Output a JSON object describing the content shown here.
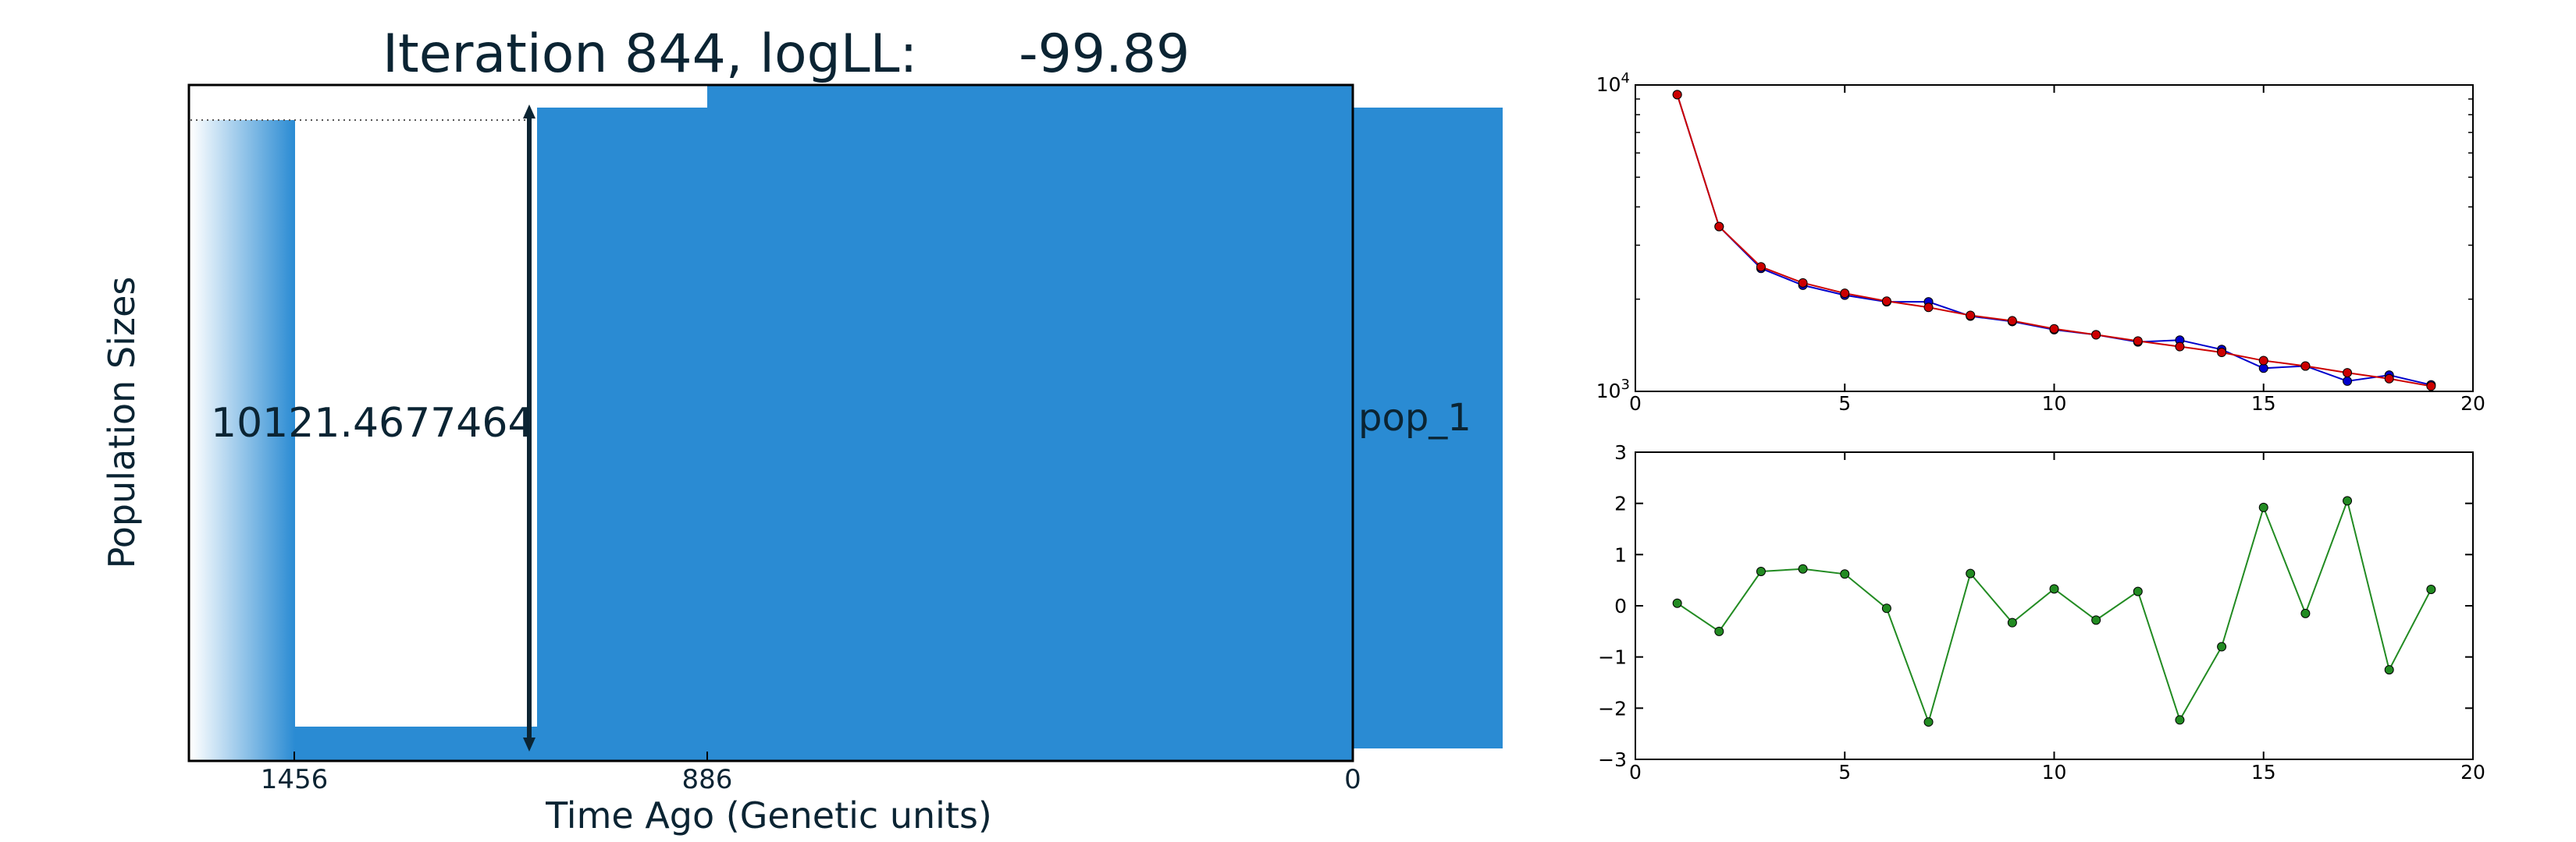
{
  "title": "Iteration 844, logLL:      -99.89",
  "demography": {
    "ylabel": "Population Sizes",
    "xlabel": "Time Ago (Genetic units)",
    "x_ticks": [
      "1456",
      "886",
      "0"
    ],
    "size_label": "10121.4677464",
    "pop_label": "pop_1",
    "fill_color": "#2a8bd3",
    "line_color": "#0b2433"
  },
  "chart_data": [
    {
      "type": "line",
      "scale": "log",
      "xlim": [
        0,
        20
      ],
      "ylim": [
        1000,
        10000
      ],
      "x_ticks": [
        "0",
        "5",
        "10",
        "15",
        "20"
      ],
      "y_ticks": [
        "10",
        "10"
      ],
      "y_tick_exponents": [
        "3",
        "4"
      ],
      "x": [
        1,
        2,
        3,
        4,
        5,
        6,
        7,
        8,
        9,
        10,
        11,
        12,
        13,
        14,
        15,
        16,
        17,
        18,
        19
      ],
      "series": [
        {
          "color": "#0000cc",
          "values": [
            9300,
            3450,
            2520,
            2220,
            2060,
            1960,
            1960,
            1760,
            1690,
            1590,
            1530,
            1450,
            1470,
            1370,
            1190,
            1210,
            1080,
            1130,
            1050
          ]
        },
        {
          "color": "#cc0000",
          "values": [
            9300,
            3450,
            2550,
            2260,
            2090,
            1970,
            1880,
            1770,
            1700,
            1600,
            1530,
            1460,
            1400,
            1340,
            1260,
            1210,
            1150,
            1100,
            1040
          ]
        }
      ]
    },
    {
      "type": "line",
      "xlim": [
        0,
        20
      ],
      "ylim": [
        -3,
        3
      ],
      "x_ticks": [
        "0",
        "5",
        "10",
        "15",
        "20"
      ],
      "y_ticks": [
        "−3",
        "−2",
        "−1",
        "0",
        "1",
        "2",
        "3"
      ],
      "x": [
        1,
        2,
        3,
        4,
        5,
        6,
        7,
        8,
        9,
        10,
        11,
        12,
        13,
        14,
        15,
        16,
        17,
        18,
        19
      ],
      "series": [
        {
          "color": "#228b22",
          "values": [
            0.05,
            -0.5,
            0.67,
            0.72,
            0.62,
            -0.05,
            -2.27,
            0.63,
            -0.33,
            0.33,
            -0.28,
            0.28,
            -2.23,
            -0.8,
            1.92,
            -0.15,
            2.05,
            -1.25,
            0.32
          ]
        }
      ]
    }
  ]
}
